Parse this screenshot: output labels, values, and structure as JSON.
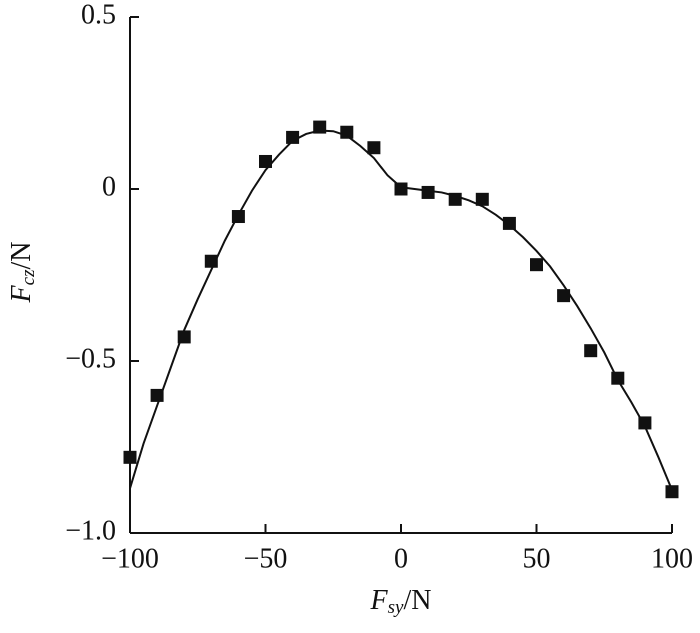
{
  "chart_data": {
    "type": "scatter",
    "xlabel": {
      "symbol": "F",
      "subscript": "sy",
      "unit": "/N"
    },
    "ylabel": {
      "symbol": "F",
      "subscript": "cz",
      "unit": "/N"
    },
    "xlim": [
      -100,
      100
    ],
    "ylim": [
      -1.0,
      0.5
    ],
    "xticks": [
      {
        "value": -100,
        "label": "−100"
      },
      {
        "value": -50,
        "label": "−50"
      },
      0,
      50,
      100
    ],
    "yticks": [
      {
        "value": -1.0,
        "label": "−1.0"
      },
      {
        "value": -0.5,
        "label": "−0.5"
      },
      0,
      0.5
    ],
    "series": [
      {
        "type": "scatter",
        "color": "#111111",
        "x": [
          -100,
          -90,
          -80,
          -70,
          -60,
          -50,
          -40,
          -30,
          -20,
          -10,
          0,
          10,
          20,
          30,
          40,
          50,
          60,
          70,
          80,
          90,
          100
        ],
        "values": [
          -0.78,
          -0.6,
          -0.43,
          -0.21,
          -0.08,
          0.08,
          0.15,
          0.18,
          0.165,
          0.12,
          0,
          -0.01,
          -0.03,
          -0.03,
          -0.1,
          -0.22,
          -0.31,
          -0.47,
          -0.55,
          -0.68,
          -0.88
        ]
      },
      {
        "type": "line",
        "color": "#111111",
        "x": [
          -100,
          -95,
          -90,
          -85,
          -80,
          -75,
          -70,
          -65,
          -60,
          -55,
          -50,
          -45,
          -40,
          -35,
          -30,
          -25,
          -20,
          -15,
          -10,
          -5,
          0,
          5,
          10,
          15,
          20,
          25,
          30,
          35,
          40,
          45,
          50,
          55,
          60,
          65,
          70,
          75,
          80,
          85,
          90,
          95,
          100
        ],
        "values": [
          -0.87,
          -0.74,
          -0.63,
          -0.52,
          -0.41,
          -0.32,
          -0.235,
          -0.15,
          -0.075,
          -0.005,
          0.055,
          0.1,
          0.14,
          0.16,
          0.17,
          0.168,
          0.155,
          0.125,
          0.09,
          0.04,
          0.005,
          0.0,
          -0.005,
          -0.01,
          -0.02,
          -0.033,
          -0.05,
          -0.075,
          -0.105,
          -0.14,
          -0.18,
          -0.225,
          -0.28,
          -0.34,
          -0.405,
          -0.475,
          -0.555,
          -0.62,
          -0.69,
          -0.78,
          -0.875
        ]
      }
    ]
  }
}
